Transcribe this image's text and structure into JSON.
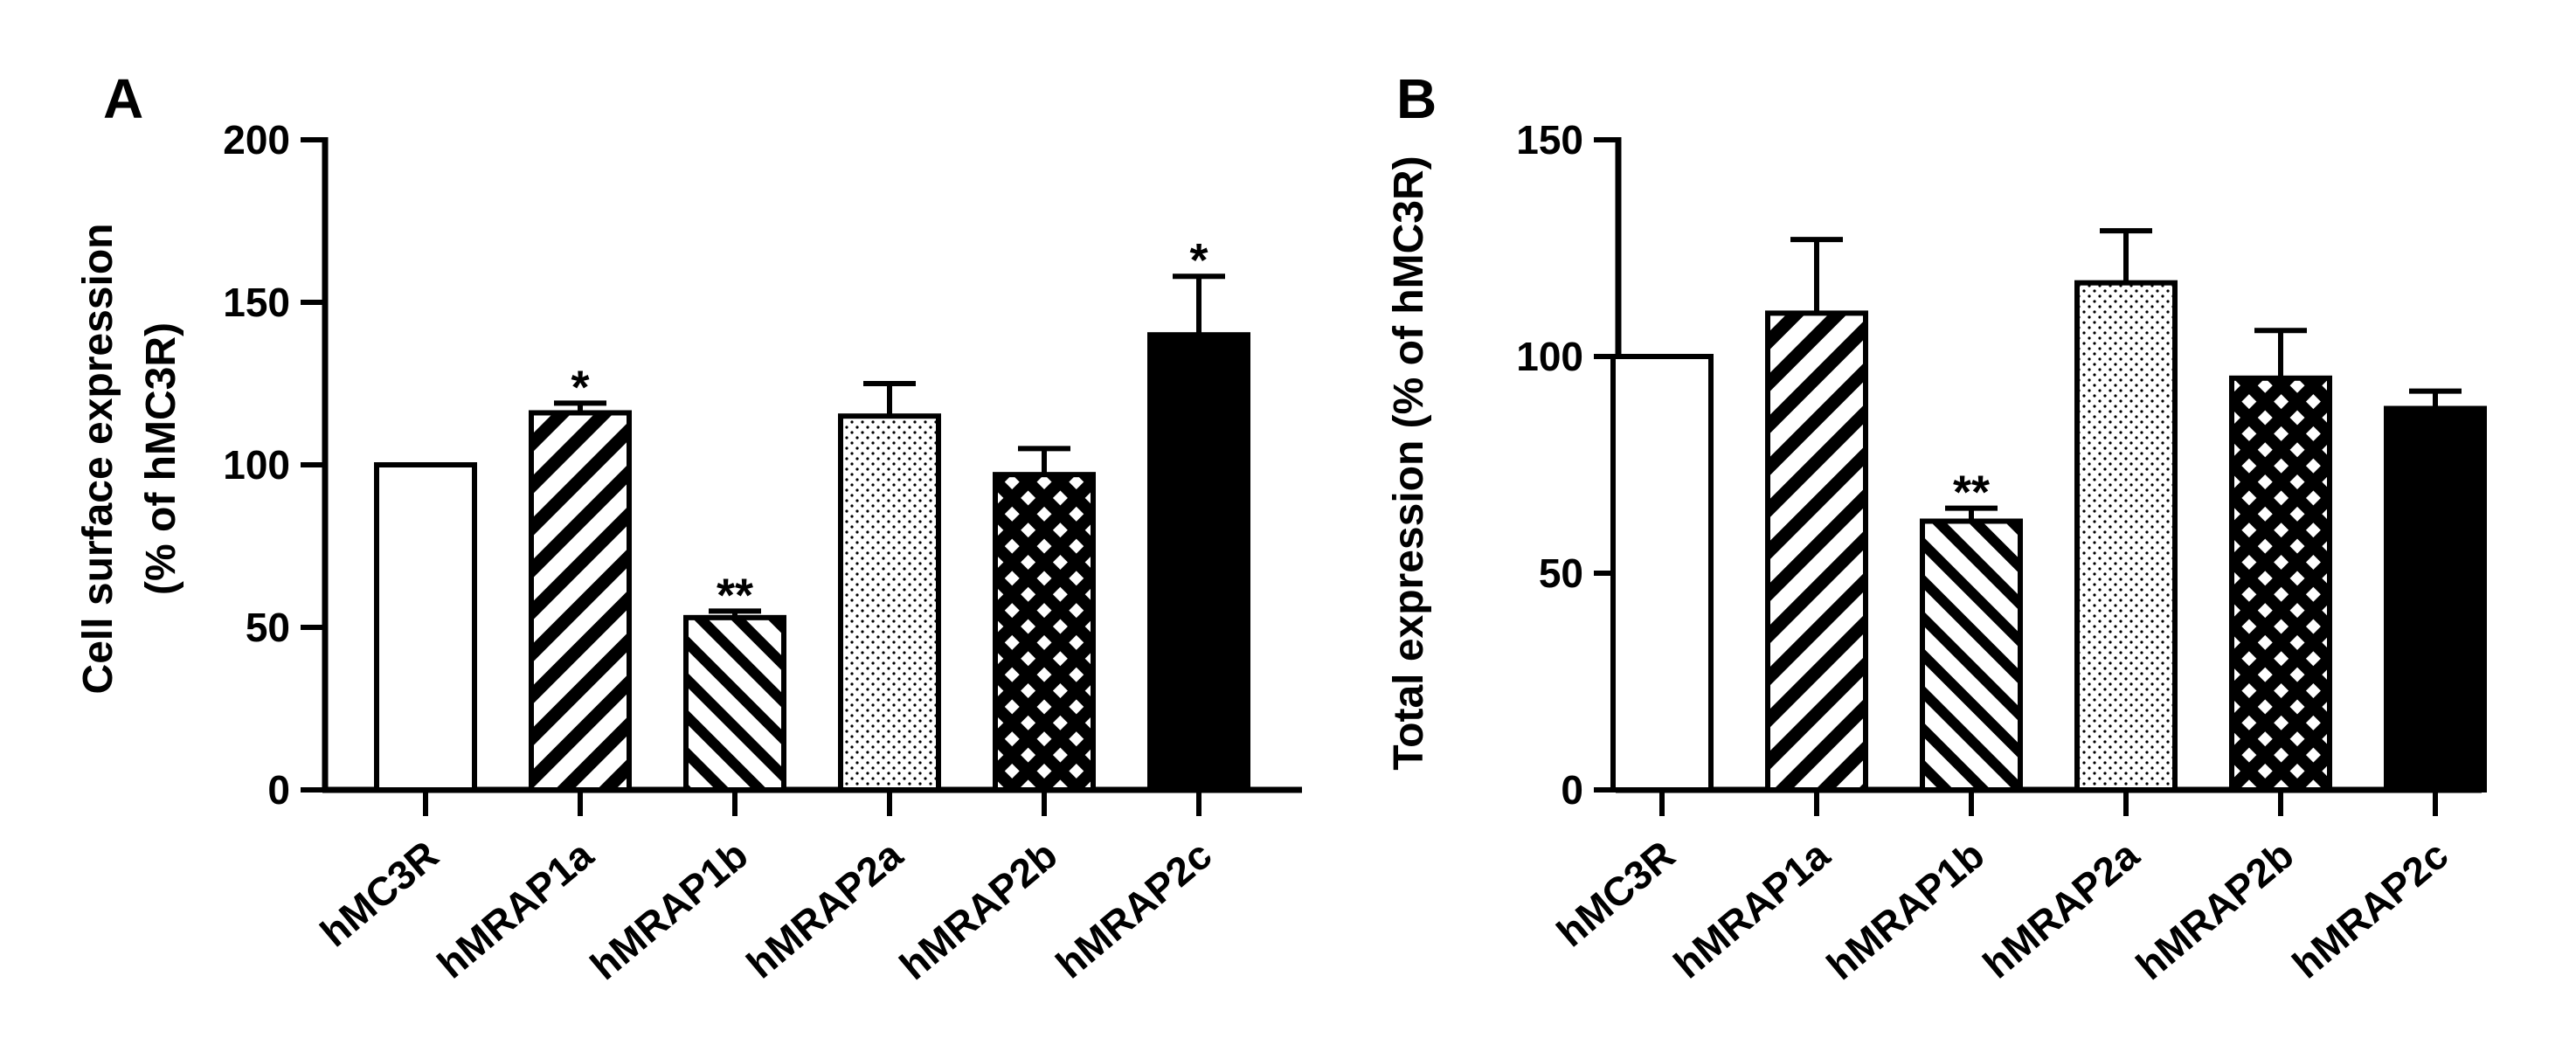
{
  "colors": {
    "ink": "#000000",
    "paper": "#ffffff"
  },
  "chart_data": [
    {
      "panel": "A",
      "type": "bar",
      "categories": [
        "hMC3R",
        "hMRAP1a",
        "hMRAP1b",
        "hMRAP2a",
        "hMRAP2b",
        "hMRAP2c"
      ],
      "values": [
        100,
        116,
        53,
        115,
        97,
        140
      ],
      "errors": [
        0,
        3,
        2,
        10,
        8,
        18
      ],
      "patterns": [
        "none",
        "diag-up",
        "diag-down",
        "dots",
        "crosshatch",
        "solid"
      ],
      "significance": [
        "",
        "*",
        "**",
        "",
        "",
        "*"
      ],
      "ylabel_line1": "Cell surface expression",
      "ylabel_line2": "(% of hMC3R)",
      "ylim": [
        0,
        200
      ],
      "yticks": [
        "0",
        "50",
        "100",
        "150",
        "200"
      ]
    },
    {
      "panel": "B",
      "type": "bar",
      "categories": [
        "hMC3R",
        "hMRAP1a",
        "hMRAP1b",
        "hMRAP2a",
        "hMRAP2b",
        "hMRAP2c"
      ],
      "values": [
        100,
        110,
        62,
        117,
        95,
        88
      ],
      "errors": [
        0,
        17,
        3,
        12,
        11,
        4
      ],
      "patterns": [
        "none",
        "diag-up",
        "diag-down",
        "dots",
        "crosshatch",
        "solid"
      ],
      "significance": [
        "",
        "",
        "**",
        "",
        "",
        ""
      ],
      "ylabel_line1": "Total expression (% of hMC3R)",
      "ylabel_line2": "",
      "ylim": [
        0,
        150
      ],
      "yticks": [
        "0",
        "50",
        "100",
        "150"
      ]
    }
  ]
}
